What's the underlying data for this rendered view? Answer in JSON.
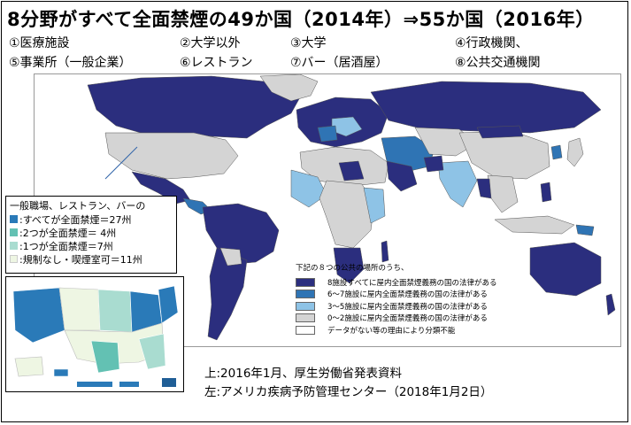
{
  "title": "8分野がすべて全面禁煙の49か国（2014年）⇒55か国（2016年）",
  "categories": [
    "①医療施設",
    "②大学以外",
    "③大学",
    "④行政機関、",
    "⑤事業所（一般企業）",
    "⑥レストラン",
    "⑦バー（居酒屋）",
    "⑧公共交通機関"
  ],
  "world_legend": {
    "title": "下記の８つの公共の場所のうち、",
    "items": [
      {
        "label": "8施設すべてに屋内全面禁煙義務の国の法律がある",
        "color": "#2b2e7e"
      },
      {
        "label": "6～7施設に屋内全面禁煙義務の国の法律がある",
        "color": "#2f74b4"
      },
      {
        "label": "3～5施設に屋内全面禁煙義務の国の法律がある",
        "color": "#8ec3e6"
      },
      {
        "label": "0～2施設に屋内全面禁煙義務の国の法律がある",
        "color": "#d4d4d4"
      },
      {
        "label": "データがない等の理由により分類不能",
        "color": "#ffffff"
      }
    ]
  },
  "us_legend": {
    "title": "一般職場、レストラン、バーの",
    "items": [
      {
        "label": ":すべてが全面禁煙＝27州",
        "color": "#2a7ab8"
      },
      {
        "label": ":2つが全面禁煙＝ 4州",
        "color": "#63c1b3"
      },
      {
        "label": ":1つが全面禁煙＝7州",
        "color": "#a9dcd0"
      },
      {
        "label": ":規制なし・喫煙室可＝11州",
        "color": "#eef6e3"
      }
    ]
  },
  "sources": [
    "上:2016年1月、厚生労働省発表資料",
    "左:アメリカ疾病予防管理センター（2018年1月2日）"
  ],
  "colors": {
    "dark": "#2b2e7e",
    "mid": "#2f74b4",
    "light": "#8ec3e6",
    "grey": "#d4d4d4",
    "us_full": "#2a7ab8"
  }
}
